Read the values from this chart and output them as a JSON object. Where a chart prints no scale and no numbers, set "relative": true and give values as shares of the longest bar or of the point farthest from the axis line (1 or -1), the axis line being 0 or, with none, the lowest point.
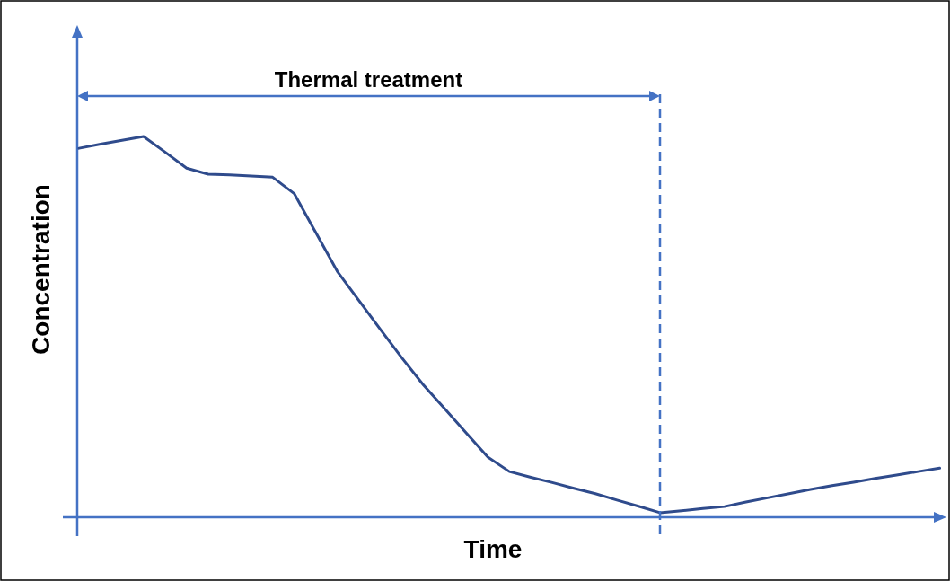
{
  "chart_data": {
    "type": "line",
    "relative": true,
    "xlabel": "Time",
    "ylabel": "Concentration",
    "marker": "none",
    "line_style": "solid",
    "categories": [
      null,
      null,
      null,
      null,
      null,
      null,
      null,
      null,
      null,
      null,
      null,
      null,
      null,
      null,
      null,
      null,
      null,
      null,
      null,
      null,
      null,
      null,
      null,
      null,
      null,
      null,
      null,
      null,
      null,
      null,
      null,
      null,
      null,
      null,
      null,
      null,
      null,
      null,
      null,
      null,
      null
    ],
    "series": [
      {
        "color": "#2f4b8c",
        "values": [
          0.969,
          0.98,
          0.99,
          1,
          0.959,
          0.917,
          0.901,
          0.899,
          0.896,
          0.893,
          0.85,
          0.748,
          0.646,
          0.57,
          0.494,
          0.419,
          0.348,
          0.285,
          0.221,
          0.158,
          0.12,
          0.105,
          0.091,
          0.076,
          0.062,
          0.045,
          0.029,
          0.012,
          0.017,
          0.023,
          0.028,
          0.04,
          0.051,
          0.062,
          0.073,
          0.083,
          0.092,
          0.102,
          0.111,
          0.12,
          0.129
        ]
      }
    ],
    "annotations": [
      "Thermal treatment"
    ]
  }
}
